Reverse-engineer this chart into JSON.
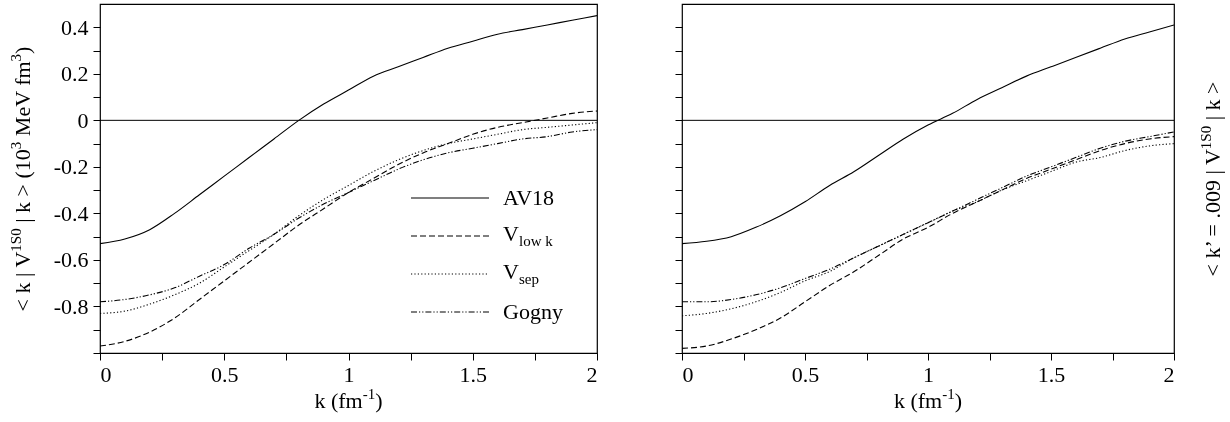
{
  "chart_data": [
    {
      "type": "line",
      "xlabel": "k  (fm$^{-1}$)",
      "ylabel": "< k | V$^{1S0}$ | k > (10$^{3}$ MeV fm$^{3}$)",
      "legend": "bottom right",
      "x": [
        0,
        0.1,
        0.2,
        0.3,
        0.4,
        0.5,
        0.6,
        0.7,
        0.8,
        0.9,
        1.0,
        1.1,
        1.2,
        1.3,
        1.4,
        1.5,
        1.6,
        1.7,
        1.8,
        1.9,
        2.0
      ],
      "xlim": [
        0,
        2
      ],
      "ylim": [
        -1,
        0.5
      ],
      "xticks": [
        0,
        {
          "value": 0.25,
          "label": null
        },
        0.5,
        {
          "value": 0.75,
          "label": null
        },
        1,
        {
          "value": 1.25,
          "label": null
        },
        1.5,
        {
          "value": 1.75,
          "label": null
        },
        2
      ],
      "yticks": [
        {
          "value": -1,
          "label": null
        },
        {
          "value": -0.9,
          "label": null
        },
        -0.8,
        {
          "value": -0.7,
          "label": null
        },
        -0.6,
        {
          "value": -0.5,
          "label": null
        },
        -0.4,
        {
          "value": -0.3,
          "label": null
        },
        -0.2,
        {
          "value": -0.1,
          "label": null
        },
        0,
        {
          "value": 0.1,
          "label": null
        },
        0.2,
        {
          "value": 0.3,
          "label": null
        },
        0.4
      ],
      "ref_lines": [
        {
          "axis": "y",
          "value": 0
        }
      ],
      "series": [
        {
          "name": "AV18",
          "color": "#000000",
          "line_style": "solid",
          "values": [
            -0.53,
            -0.51,
            -0.47,
            -0.4,
            -0.32,
            -0.24,
            -0.16,
            -0.08,
            0,
            0.07,
            0.13,
            0.19,
            0.23,
            0.27,
            0.31,
            0.34,
            0.37,
            0.39,
            0.41,
            0.43,
            0.45
          ]
        },
        {
          "name": "V$_{low k}$",
          "color": "#000000",
          "line_style": "dashed",
          "values": [
            -0.97,
            -0.95,
            -0.91,
            -0.85,
            -0.77,
            -0.69,
            -0.61,
            -0.53,
            -0.45,
            -0.38,
            -0.31,
            -0.25,
            -0.19,
            -0.14,
            -0.1,
            -0.06,
            -0.03,
            -0.01,
            0.01,
            0.03,
            0.04
          ]
        },
        {
          "name": "V$_{sep}$",
          "color": "#000000",
          "line_style": "dotted",
          "values": [
            -0.83,
            -0.82,
            -0.79,
            -0.75,
            -0.7,
            -0.63,
            -0.56,
            -0.49,
            -0.41,
            -0.34,
            -0.28,
            -0.22,
            -0.17,
            -0.13,
            -0.1,
            -0.08,
            -0.06,
            -0.04,
            -0.03,
            -0.02,
            -0.01
          ]
        },
        {
          "name": "Gogny",
          "color": "#000000",
          "line_style": "dashdot",
          "values": [
            -0.78,
            -0.77,
            -0.75,
            -0.72,
            -0.67,
            -0.62,
            -0.55,
            -0.49,
            -0.42,
            -0.36,
            -0.31,
            -0.26,
            -0.21,
            -0.17,
            -0.14,
            -0.12,
            -0.1,
            -0.08,
            -0.07,
            -0.05,
            -0.04
          ]
        }
      ]
    },
    {
      "type": "line",
      "xlabel": "k  (fm$^{-1}$)",
      "ylabel": "< k’ = .009 | V$^{1S0}$ | k >",
      "tick_labels": "x",
      "x": [
        0,
        0.1,
        0.2,
        0.3,
        0.4,
        0.5,
        0.6,
        0.7,
        0.8,
        0.9,
        1.0,
        1.1,
        1.2,
        1.3,
        1.4,
        1.5,
        1.6,
        1.7,
        1.8,
        1.9,
        2.0
      ],
      "xlim": [
        0,
        2
      ],
      "ylim": [
        -1,
        0.5
      ],
      "xticks": [
        0,
        {
          "value": 0.25,
          "label": null
        },
        0.5,
        {
          "value": 0.75,
          "label": null
        },
        1,
        {
          "value": 1.25,
          "label": null
        },
        1.5,
        {
          "value": 1.75,
          "label": null
        },
        2
      ],
      "yticks": [
        {
          "value": -1,
          "label": null
        },
        {
          "value": -0.9,
          "label": null
        },
        {
          "value": -0.8,
          "label": null
        },
        {
          "value": -0.7,
          "label": null
        },
        {
          "value": -0.6,
          "label": null
        },
        {
          "value": -0.5,
          "label": null
        },
        {
          "value": -0.4,
          "label": null
        },
        {
          "value": -0.3,
          "label": null
        },
        {
          "value": -0.2,
          "label": null
        },
        {
          "value": -0.1,
          "label": null
        },
        {
          "value": 0,
          "label": null
        },
        {
          "value": 0.1,
          "label": null
        },
        {
          "value": 0.2,
          "label": null
        },
        {
          "value": 0.3,
          "label": null
        },
        {
          "value": 0.4,
          "label": null
        }
      ],
      "ref_lines": [
        {
          "axis": "y",
          "value": 0
        }
      ],
      "series": [
        {
          "color": "#000000",
          "line_style": "solid",
          "values": [
            -0.53,
            -0.52,
            -0.5,
            -0.46,
            -0.41,
            -0.35,
            -0.28,
            -0.22,
            -0.15,
            -0.08,
            -0.02,
            0.03,
            0.09,
            0.14,
            0.19,
            0.23,
            0.27,
            0.31,
            0.35,
            0.38,
            0.41
          ]
        },
        {
          "color": "#000000",
          "line_style": "dashed",
          "values": [
            -0.98,
            -0.97,
            -0.94,
            -0.9,
            -0.85,
            -0.78,
            -0.71,
            -0.65,
            -0.58,
            -0.51,
            -0.46,
            -0.4,
            -0.35,
            -0.3,
            -0.25,
            -0.21,
            -0.17,
            -0.13,
            -0.1,
            -0.08,
            -0.07
          ]
        },
        {
          "color": "#000000",
          "line_style": "dotted",
          "values": [
            -0.84,
            -0.83,
            -0.81,
            -0.78,
            -0.74,
            -0.69,
            -0.65,
            -0.59,
            -0.54,
            -0.49,
            -0.44,
            -0.39,
            -0.35,
            -0.3,
            -0.26,
            -0.22,
            -0.18,
            -0.16,
            -0.13,
            -0.11,
            -0.1
          ]
        },
        {
          "color": "#000000",
          "line_style": "dashdot",
          "values": [
            -0.78,
            -0.78,
            -0.77,
            -0.75,
            -0.72,
            -0.68,
            -0.64,
            -0.59,
            -0.54,
            -0.49,
            -0.44,
            -0.39,
            -0.34,
            -0.29,
            -0.24,
            -0.2,
            -0.16,
            -0.12,
            -0.09,
            -0.07,
            -0.05
          ]
        }
      ]
    }
  ]
}
